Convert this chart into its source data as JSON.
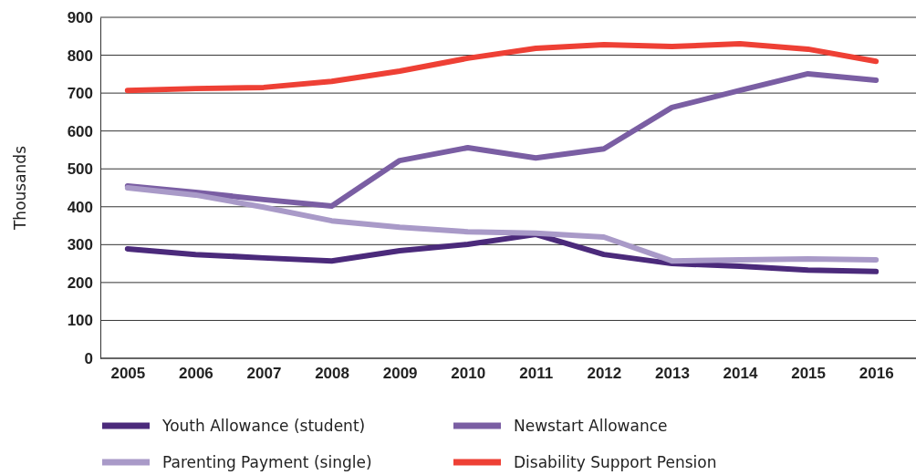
{
  "chart_data": {
    "type": "line",
    "ylabel": "Thousands",
    "categories": [
      "2005",
      "2006",
      "2007",
      "2008",
      "2009",
      "2010",
      "2011",
      "2012",
      "2013",
      "2014",
      "2015",
      "2016"
    ],
    "ylim": [
      0,
      900
    ],
    "yticks": [
      0,
      100,
      200,
      300,
      400,
      500,
      600,
      700,
      800,
      900
    ],
    "grid": "y",
    "legend": "bottom",
    "line_style": "solid",
    "marker": "none",
    "series": [
      {
        "name": "Youth Allowance (student)",
        "color": "#4b2a7b",
        "values": [
          289,
          274,
          265,
          257,
          284,
          301,
          327,
          274,
          250,
          243,
          233,
          229
        ]
      },
      {
        "name": "Newstart Allowance",
        "color": "#7a5ea3",
        "values": [
          455,
          438,
          419,
          402,
          522,
          556,
          529,
          553,
          662,
          707,
          751,
          734
        ]
      },
      {
        "name": "Parenting Payment (single)",
        "color": "#a99ac8",
        "values": [
          450,
          431,
          399,
          363,
          346,
          334,
          330,
          320,
          257,
          260,
          262,
          260
        ]
      },
      {
        "name": "Disability Support Pension",
        "color": "#ee4035",
        "values": [
          707,
          712,
          715,
          731,
          758,
          792,
          818,
          828,
          823,
          830,
          816,
          784
        ]
      }
    ]
  }
}
